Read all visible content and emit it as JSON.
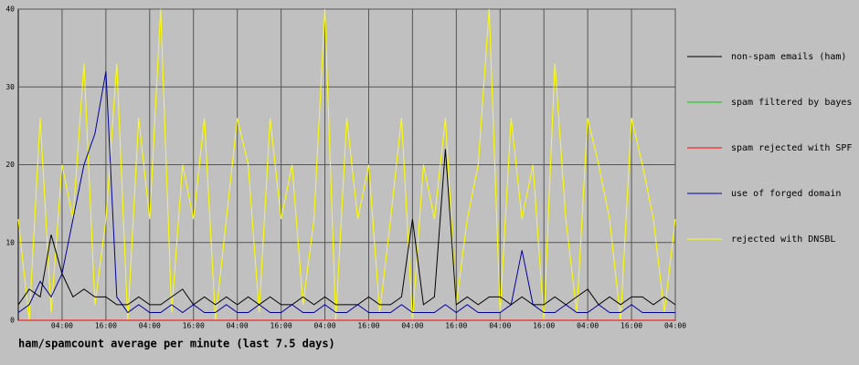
{
  "chart_data": {
    "type": "line",
    "title": "ham/spamcount average per minute (last 7.5 days)",
    "x": [
      0,
      3,
      6,
      9,
      12,
      15,
      18,
      21,
      24,
      27,
      30,
      33,
      36,
      39,
      42,
      45,
      48,
      51,
      54,
      57,
      60,
      63,
      66,
      69,
      72,
      75,
      78,
      81,
      84,
      87,
      90,
      93,
      96,
      99,
      102,
      105,
      108,
      111,
      114,
      117,
      120,
      123,
      126,
      129,
      132,
      135,
      138,
      141,
      144,
      147,
      150,
      153,
      156,
      159,
      162,
      165,
      168,
      171,
      174,
      177,
      180
    ],
    "xlim": [
      0,
      180
    ],
    "xticks": [
      {
        "value": 12,
        "label": "04:00"
      },
      {
        "value": 24,
        "label": "16:00"
      },
      {
        "value": 36,
        "label": "04:00"
      },
      {
        "value": 48,
        "label": "16:00"
      },
      {
        "value": 60,
        "label": "04:00"
      },
      {
        "value": 72,
        "label": "16:00"
      },
      {
        "value": 84,
        "label": "04:00"
      },
      {
        "value": 96,
        "label": "16:00"
      },
      {
        "value": 108,
        "label": "04:00"
      },
      {
        "value": 120,
        "label": "16:00"
      },
      {
        "value": 132,
        "label": "04:00"
      },
      {
        "value": 144,
        "label": "16:00"
      },
      {
        "value": 156,
        "label": "04:00"
      },
      {
        "value": 168,
        "label": "16:00"
      },
      {
        "value": 180,
        "label": "04:00"
      }
    ],
    "ylim": [
      0,
      40
    ],
    "yticks": [
      0,
      10,
      20,
      30,
      40
    ],
    "grid": true,
    "legend": "right",
    "series": [
      {
        "name": "non-spam emails (ham)",
        "color": "#000000",
        "values": [
          2,
          4,
          3,
          11,
          6,
          3,
          4,
          3,
          3,
          2,
          2,
          3,
          2,
          2,
          3,
          4,
          2,
          3,
          2,
          3,
          2,
          3,
          2,
          3,
          2,
          2,
          3,
          2,
          3,
          2,
          2,
          2,
          3,
          2,
          2,
          3,
          13,
          2,
          3,
          22,
          2,
          3,
          2,
          3,
          3,
          2,
          3,
          2,
          2,
          3,
          2,
          3,
          4,
          2,
          3,
          2,
          3,
          3,
          2,
          3,
          2
        ]
      },
      {
        "name": "spam filtered by bayes",
        "color": "#00cc00",
        "values": [
          0,
          0,
          0,
          0,
          0,
          0,
          0,
          0,
          0,
          0,
          0,
          0,
          0,
          0,
          0,
          0,
          0,
          0,
          0,
          0,
          0,
          0,
          0,
          0,
          0,
          0,
          0,
          0,
          0,
          0,
          0,
          0,
          0,
          0,
          0,
          0,
          0,
          0,
          0,
          0,
          0,
          0,
          0,
          0,
          0,
          0,
          0,
          0,
          0,
          0,
          0,
          0,
          0,
          0,
          0,
          0,
          0,
          0,
          0,
          0,
          0
        ]
      },
      {
        "name": "spam rejected with SPF",
        "color": "#ff0000",
        "values": [
          0,
          0,
          0,
          0,
          0,
          0,
          0,
          0,
          0,
          0,
          0,
          0,
          0,
          0,
          0,
          0,
          0,
          0,
          0,
          0,
          0,
          0,
          0,
          0,
          0,
          0,
          0,
          0,
          0,
          0,
          0,
          0,
          0,
          0,
          0,
          0,
          0,
          0,
          0,
          0,
          0,
          0,
          0,
          0,
          0,
          0,
          0,
          0,
          0,
          0,
          0,
          0,
          0,
          0,
          0,
          0,
          0,
          0,
          0,
          0,
          0
        ]
      },
      {
        "name": "use of forged domain",
        "color": "#000099",
        "values": [
          1,
          2,
          5,
          3,
          6,
          13,
          20,
          24,
          32,
          3,
          1,
          2,
          1,
          1,
          2,
          1,
          2,
          1,
          1,
          2,
          1,
          1,
          2,
          1,
          1,
          2,
          1,
          1,
          2,
          1,
          1,
          2,
          1,
          1,
          1,
          2,
          1,
          1,
          1,
          2,
          1,
          2,
          1,
          1,
          1,
          2,
          9,
          2,
          1,
          1,
          2,
          1,
          1,
          2,
          1,
          1,
          2,
          1,
          1,
          1,
          1
        ]
      },
      {
        "name": "rejected with DNSBL",
        "color": "#ffff00",
        "values": [
          13,
          0,
          26,
          1,
          20,
          13,
          33,
          2,
          13,
          33,
          0,
          26,
          13,
          40,
          1,
          20,
          13,
          26,
          0,
          13,
          26,
          20,
          1,
          26,
          13,
          20,
          2,
          13,
          40,
          0,
          26,
          13,
          20,
          1,
          13,
          26,
          0,
          20,
          13,
          26,
          2,
          13,
          20,
          40,
          1,
          26,
          13,
          20,
          0,
          33,
          13,
          1,
          26,
          20,
          13,
          0,
          26,
          20,
          13,
          1,
          13
        ]
      }
    ]
  }
}
